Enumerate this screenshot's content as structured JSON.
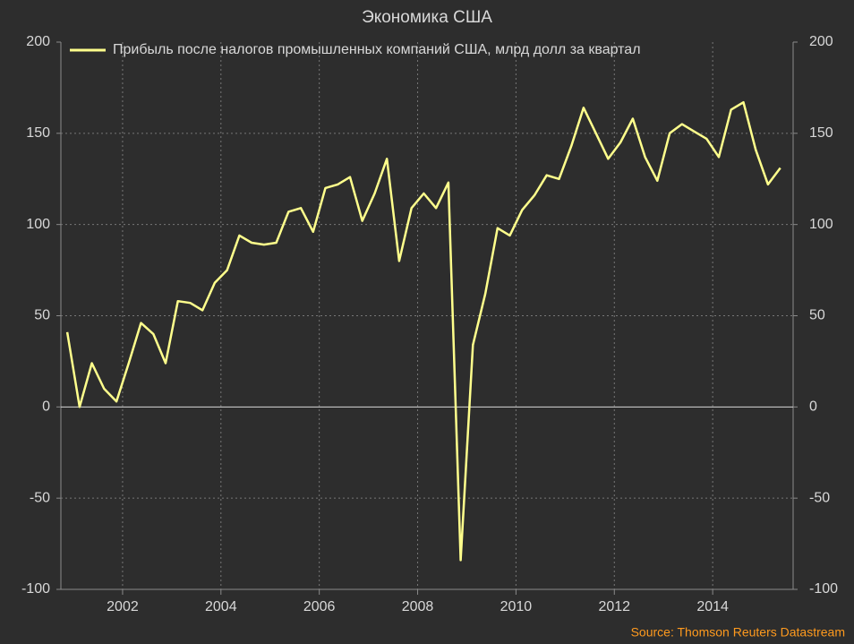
{
  "chart_data": {
    "type": "line",
    "title": "Экономика США",
    "source": "Source: Thomson Reuters Datastream",
    "x": [
      2000.875,
      2001.125,
      2001.375,
      2001.625,
      2001.875,
      2002.125,
      2002.375,
      2002.625,
      2002.875,
      2003.125,
      2003.375,
      2003.625,
      2003.875,
      2004.125,
      2004.375,
      2004.625,
      2004.875,
      2005.125,
      2005.375,
      2005.625,
      2005.875,
      2006.125,
      2006.375,
      2006.625,
      2006.875,
      2007.125,
      2007.375,
      2007.625,
      2007.875,
      2008.125,
      2008.375,
      2008.625,
      2008.875,
      2009.125,
      2009.375,
      2009.625,
      2009.875,
      2010.125,
      2010.375,
      2010.625,
      2010.875,
      2011.125,
      2011.375,
      2011.625,
      2011.875,
      2012.125,
      2012.375,
      2012.625,
      2012.875,
      2013.125,
      2013.375,
      2013.625,
      2013.875,
      2014.125,
      2014.375,
      2014.625,
      2014.875,
      2015.125,
      2015.375
    ],
    "series": [
      {
        "name": "Прибыль после налогов промышленных компаний США, млрд долл за квартал",
        "color": "#ffff8c",
        "values": [
          41,
          0,
          24,
          10,
          3,
          24,
          46,
          40,
          24,
          58,
          57,
          53,
          68,
          75,
          94,
          90,
          89,
          90,
          107,
          109,
          96,
          120,
          122,
          126,
          102,
          117,
          136,
          80,
          109,
          117,
          109,
          123,
          -84,
          34,
          62,
          98,
          94,
          108,
          116,
          127,
          125,
          143,
          164,
          150,
          136,
          145,
          158,
          137,
          124,
          150,
          155,
          151,
          147,
          137,
          163,
          167,
          141,
          122,
          131
        ]
      }
    ],
    "xlim": [
      2000.745,
      2015.636
    ],
    "xticks": [
      2002,
      2004,
      2006,
      2008,
      2010,
      2012,
      2014
    ],
    "ylim": [
      -100,
      200
    ],
    "yticks": [
      -100,
      -50,
      0,
      50,
      100,
      150,
      200
    ],
    "grid": true,
    "legend": "top-left"
  }
}
